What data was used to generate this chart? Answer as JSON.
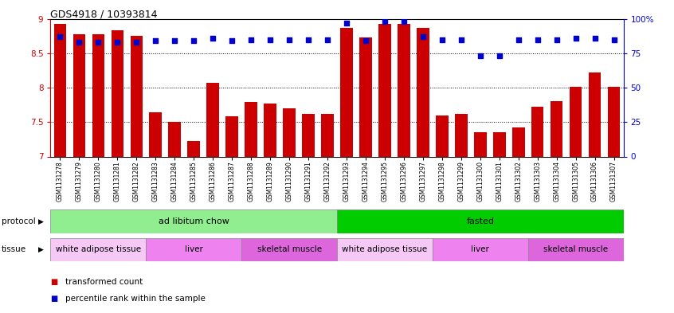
{
  "title": "GDS4918 / 10393814",
  "samples": [
    "GSM1131278",
    "GSM1131279",
    "GSM1131280",
    "GSM1131281",
    "GSM1131282",
    "GSM1131283",
    "GSM1131284",
    "GSM1131285",
    "GSM1131286",
    "GSM1131287",
    "GSM1131288",
    "GSM1131289",
    "GSM1131290",
    "GSM1131291",
    "GSM1131292",
    "GSM1131293",
    "GSM1131294",
    "GSM1131295",
    "GSM1131296",
    "GSM1131297",
    "GSM1131298",
    "GSM1131299",
    "GSM1131300",
    "GSM1131301",
    "GSM1131302",
    "GSM1131303",
    "GSM1131304",
    "GSM1131305",
    "GSM1131306",
    "GSM1131307"
  ],
  "red_values": [
    8.93,
    8.78,
    8.78,
    8.83,
    8.75,
    7.64,
    7.5,
    7.22,
    8.07,
    7.58,
    7.79,
    7.77,
    7.7,
    7.62,
    7.62,
    8.87,
    8.73,
    8.93,
    8.93,
    8.87,
    7.6,
    7.62,
    7.35,
    7.35,
    7.42,
    7.72,
    7.8,
    8.01,
    8.22,
    8.01
  ],
  "blue_values": [
    87,
    83,
    83,
    83,
    83,
    84,
    84,
    84,
    86,
    84,
    85,
    85,
    85,
    85,
    85,
    97,
    84,
    98,
    98,
    87,
    85,
    85,
    73,
    73,
    85,
    85,
    85,
    86,
    86,
    85
  ],
  "ylim_left": [
    7.0,
    9.0
  ],
  "ylim_right": [
    0,
    100
  ],
  "yticks_left": [
    7.0,
    7.5,
    8.0,
    8.5,
    9.0
  ],
  "yticks_right": [
    0,
    25,
    50,
    75,
    100
  ],
  "bar_color": "#cc0000",
  "dot_color": "#0000cc",
  "protocol_colors": [
    "#90ee90",
    "#00cc00"
  ],
  "protocol_labels": [
    "ad libitum chow",
    "fasted"
  ],
  "protocol_ranges": [
    [
      0,
      15
    ],
    [
      15,
      30
    ]
  ],
  "tissue_labels": [
    [
      "white adipose tissue",
      0,
      5
    ],
    [
      "liver",
      5,
      10
    ],
    [
      "skeletal muscle",
      10,
      15
    ],
    [
      "white adipose tissue",
      15,
      20
    ],
    [
      "liver",
      20,
      25
    ],
    [
      "skeletal muscle",
      25,
      30
    ]
  ],
  "tissue_colors": [
    "#f5c8f5",
    "#ee82ee",
    "#dd66dd",
    "#f5c8f5",
    "#ee82ee",
    "#dd66dd"
  ],
  "left_label_color": "#cc0000",
  "right_label_color": "#0000cc"
}
